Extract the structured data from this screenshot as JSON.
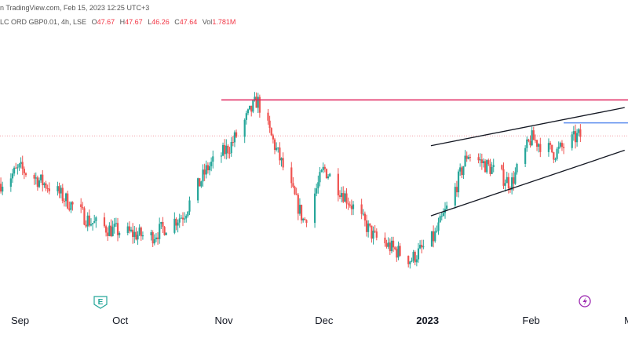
{
  "header": {
    "source_line": "n TradingView.com, Feb 15, 2023 12:25 UTC+3",
    "symbol": "LC ORD GBP0.01, 4h, LSE",
    "o_label": "O",
    "o_value": "47.67",
    "h_label": "H",
    "h_value": "47.67",
    "l_label": "L",
    "l_value": "46.26",
    "c_label": "C",
    "c_value": "47.64",
    "vol_label": "Vol",
    "vol_value": "1.781M"
  },
  "colors": {
    "up": "#26a69a",
    "down": "#ef5350",
    "resistance": "#e0245e",
    "level": "#5b8def",
    "trendline": "#131722",
    "price_line": "#f4a0a5",
    "axis_text": "#131722"
  },
  "events": {
    "earnings_icon": "E",
    "dividend_icon": "lightning-icon"
  },
  "chart_data": {
    "type": "candlestick",
    "timeframe": "4h",
    "x_tick_labels": [
      "Sep",
      "Oct",
      "Nov",
      "Dec",
      "2023",
      "Feb",
      "M"
    ],
    "approx_price_path": [
      {
        "date": "2022-08-26",
        "close": 44.5
      },
      {
        "date": "2022-09-01",
        "close": 45.5
      },
      {
        "date": "2022-09-12",
        "close": 44.0
      },
      {
        "date": "2022-09-22",
        "close": 42.0
      },
      {
        "date": "2022-09-28",
        "close": 41.5
      },
      {
        "date": "2022-10-10",
        "close": 41.0
      },
      {
        "date": "2022-10-20",
        "close": 42.5
      },
      {
        "date": "2022-10-27",
        "close": 45.5
      },
      {
        "date": "2022-11-03",
        "close": 47.0
      },
      {
        "date": "2022-11-11",
        "close": 50.0
      },
      {
        "date": "2022-11-18",
        "close": 46.0
      },
      {
        "date": "2022-11-25",
        "close": 42.0
      },
      {
        "date": "2022-12-01",
        "close": 45.5
      },
      {
        "date": "2022-12-08",
        "close": 43.5
      },
      {
        "date": "2022-12-16",
        "close": 41.0
      },
      {
        "date": "2022-12-27",
        "close": 39.5
      },
      {
        "date": "2023-01-03",
        "close": 41.0
      },
      {
        "date": "2023-01-09",
        "close": 44.0
      },
      {
        "date": "2023-01-13",
        "close": 46.5
      },
      {
        "date": "2023-01-20",
        "close": 45.5
      },
      {
        "date": "2023-01-26",
        "close": 44.5
      },
      {
        "date": "2023-02-01",
        "close": 47.5
      },
      {
        "date": "2023-02-08",
        "close": 46.5
      },
      {
        "date": "2023-02-15",
        "close": 47.64
      }
    ],
    "levels": {
      "resistance": 50.0,
      "blue_level": 48.5,
      "last_price": 47.64
    },
    "trendlines": [
      {
        "from": {
          "date": "2023-01-02",
          "price": 47.0
        },
        "to": {
          "date": "2023-03-01",
          "price": 49.5
        }
      },
      {
        "from": {
          "date": "2023-01-02",
          "price": 42.4
        },
        "to": {
          "date": "2023-03-01",
          "price": 46.7
        }
      }
    ],
    "y_range": [
      37.0,
      54.5
    ]
  }
}
